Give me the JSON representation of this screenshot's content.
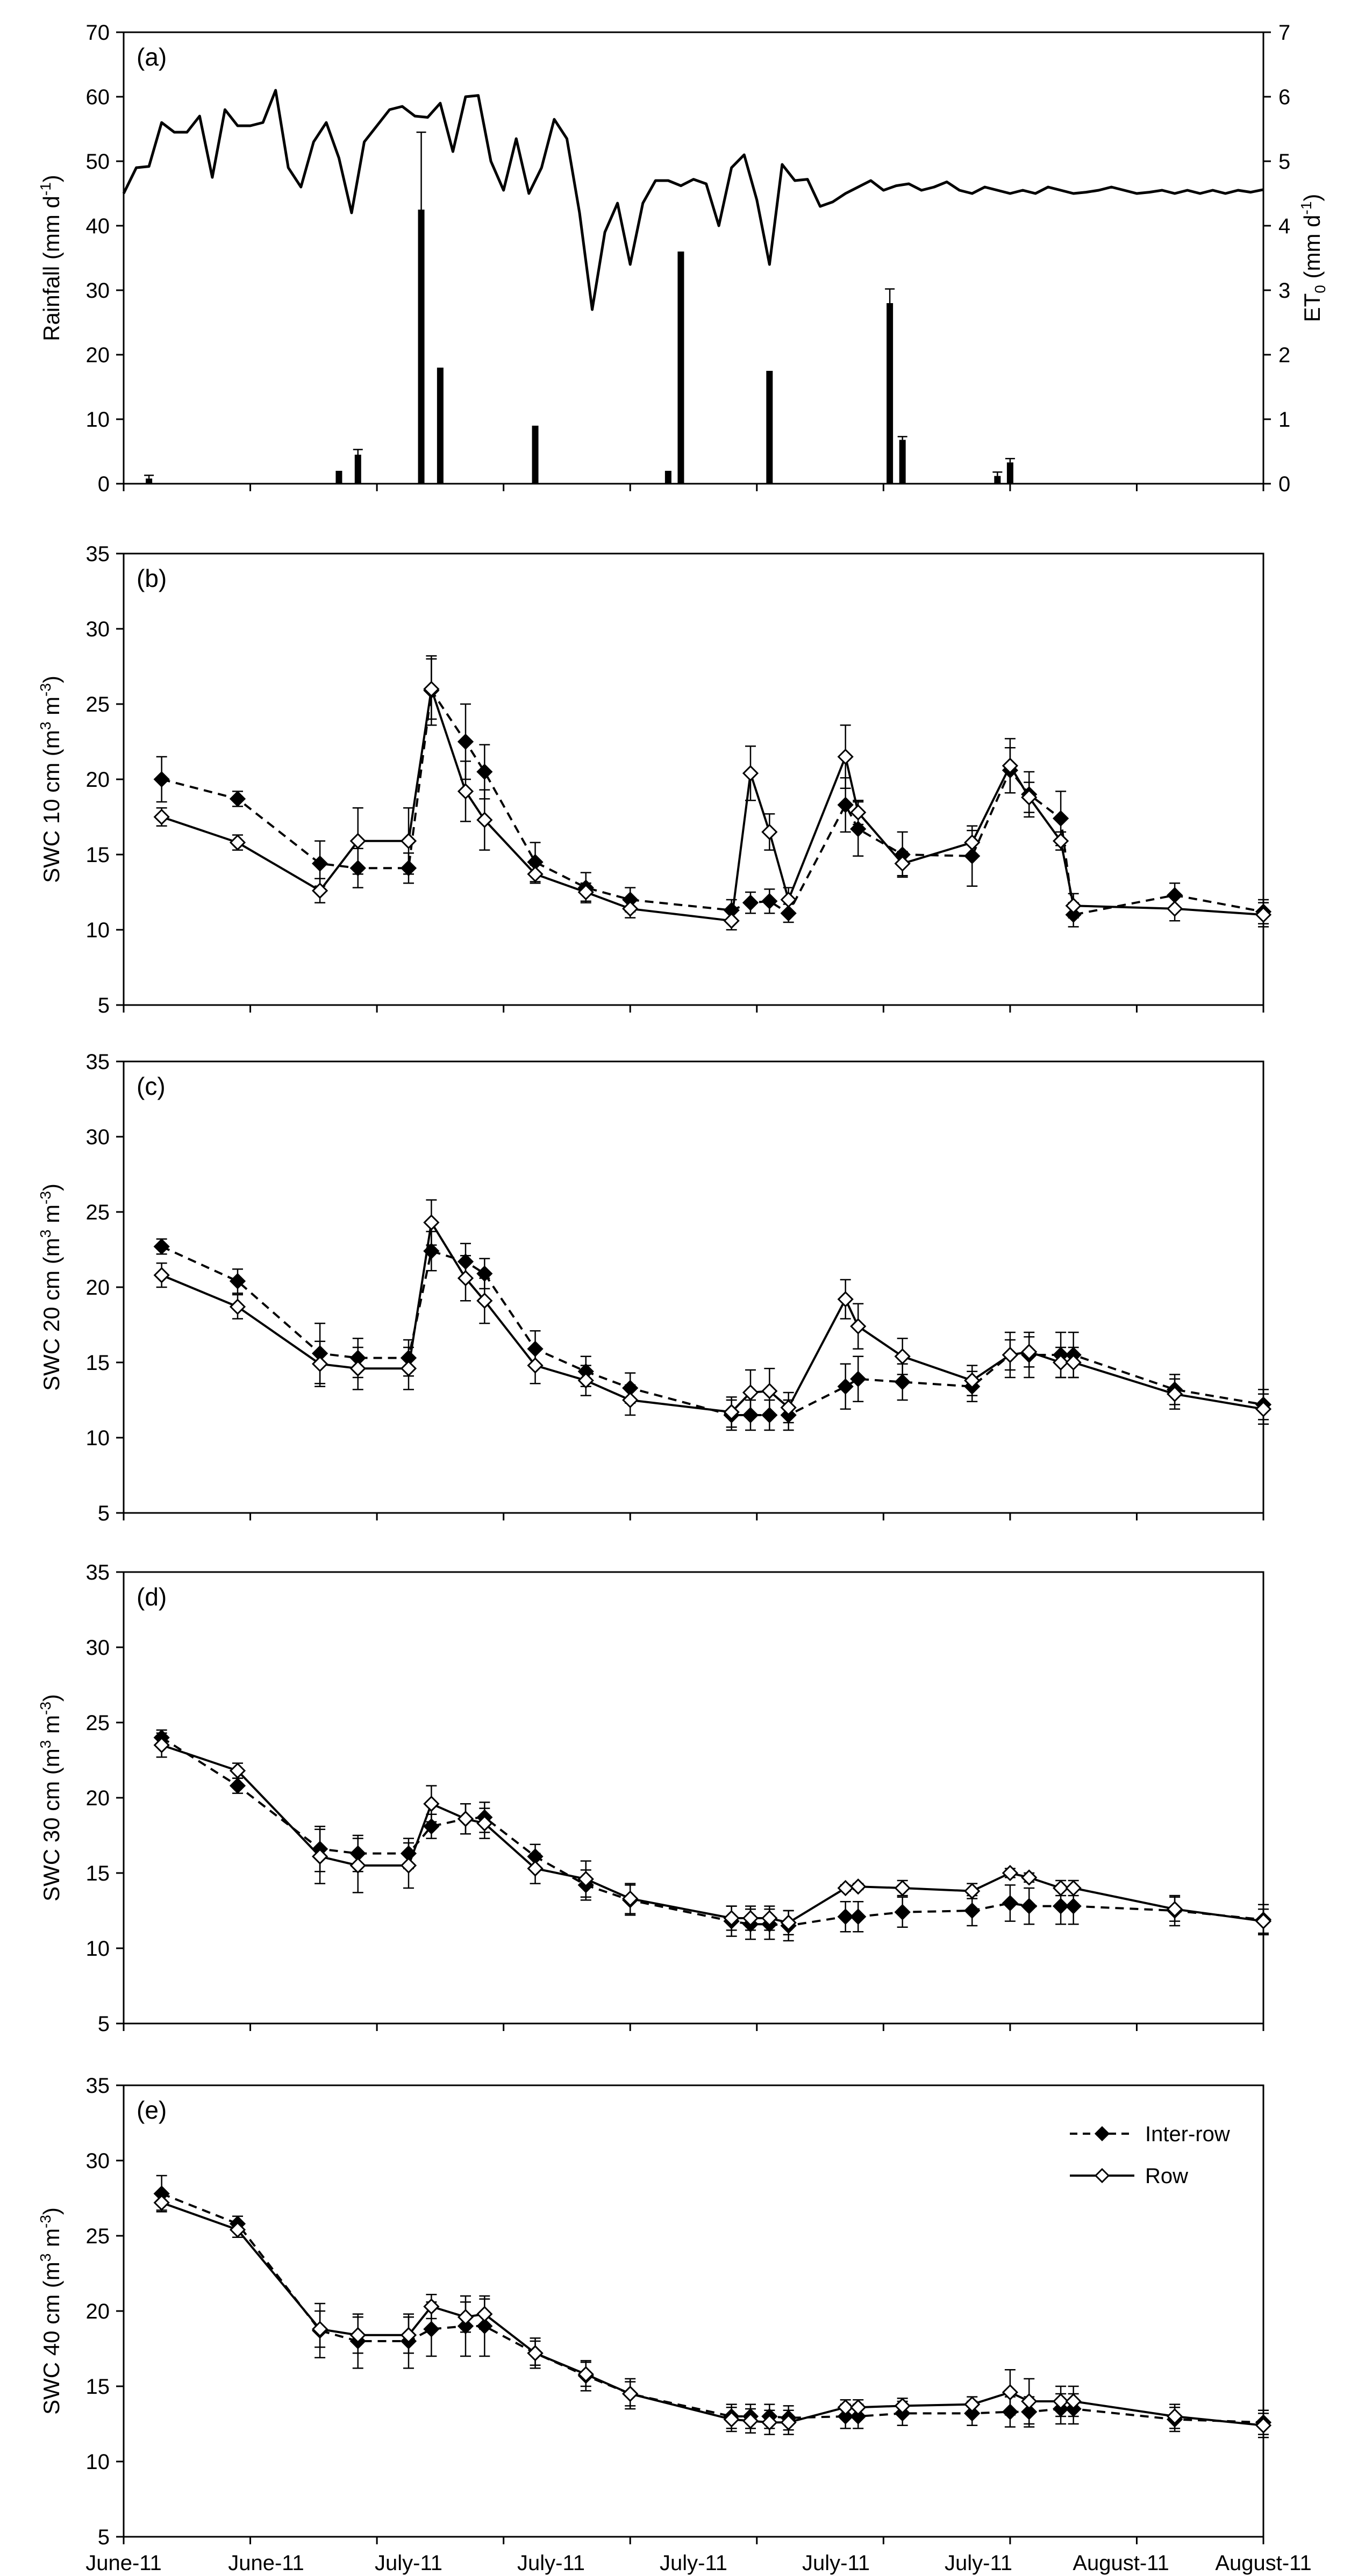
{
  "chart_data": [
    {
      "panel": "(a)",
      "type": "bar+line",
      "ylabel": "Rainfall (mm d⁻¹)",
      "ylabel_parts": [
        "Rainfall (mm d",
        "-1",
        ")"
      ],
      "y2label": "ET₀ (mm d⁻¹)",
      "y2label_parts": [
        "ET",
        "0",
        " (mm d",
        "-1",
        ")"
      ],
      "ylim": [
        0,
        70
      ],
      "yticks": [
        "0",
        "10",
        "20",
        "30",
        "40",
        "50",
        "60",
        "70"
      ],
      "y2lim": [
        0,
        7
      ],
      "y2ticks": [
        "0",
        "1",
        "2",
        "3",
        "4",
        "5",
        "6",
        "7"
      ],
      "xlim": [
        0,
        90
      ],
      "rainfall": {
        "x": [
          2,
          17,
          18.5,
          23.5,
          25,
          32.5,
          43,
          44,
          51,
          69,
          60.5,
          61.5,
          70
        ],
        "values": [
          0.8,
          2,
          4.5,
          42.5,
          18,
          9,
          2,
          36,
          17.5,
          1.2,
          28,
          6.8,
          3.3
        ],
        "err": [
          0.5,
          0,
          0.8,
          12,
          0,
          0,
          0,
          0,
          0,
          0.6,
          2.2,
          0.5,
          0.6
        ]
      },
      "et0": {
        "x": [
          0,
          1,
          2,
          3,
          4,
          5,
          6,
          7,
          8,
          9,
          10,
          11,
          12,
          13,
          14,
          15,
          16,
          17,
          18,
          19,
          20,
          21,
          22,
          23,
          24,
          25,
          26,
          27,
          28,
          29,
          30,
          31,
          32,
          33,
          34,
          35,
          36,
          37,
          38,
          39,
          40,
          41,
          42,
          43,
          44,
          45,
          46,
          47,
          48,
          49,
          50,
          51,
          52,
          53,
          54,
          55,
          56,
          57,
          58,
          59,
          60,
          61,
          62,
          63,
          64,
          65,
          66,
          67,
          68,
          69,
          70,
          71,
          72,
          73,
          74,
          75,
          76,
          77,
          78,
          79,
          80,
          81,
          82,
          83,
          84,
          85,
          86,
          87,
          88,
          89,
          90
        ],
        "values": [
          4.5,
          4.9,
          4.92,
          5.6,
          5.45,
          5.45,
          5.7,
          4.75,
          5.8,
          5.55,
          5.55,
          5.6,
          6.1,
          4.9,
          4.6,
          5.3,
          5.6,
          5.05,
          4.2,
          5.3,
          5.55,
          5.8,
          5.85,
          5.7,
          5.68,
          5.9,
          5.15,
          6.0,
          6.02,
          5.0,
          4.55,
          5.35,
          4.5,
          4.9,
          5.65,
          5.35,
          4.2,
          2.7,
          3.9,
          4.35,
          3.4,
          4.35,
          4.7,
          4.7,
          4.62,
          4.72,
          4.65,
          4.0,
          4.9,
          5.1,
          4.4,
          3.4,
          4.95,
          4.7,
          4.72,
          4.3,
          4.37,
          4.5,
          4.6,
          4.7,
          4.55,
          4.62,
          4.65,
          4.55,
          4.6,
          4.68,
          4.55,
          4.5,
          4.6,
          4.55,
          4.5,
          4.55,
          4.5,
          4.6,
          4.55,
          4.5,
          4.52,
          4.55,
          4.6,
          4.55,
          4.5,
          4.52,
          4.55,
          4.5,
          4.55,
          4.5,
          4.55,
          4.5,
          4.55,
          4.52,
          4.56
        ]
      }
    },
    {
      "panel": "(b)",
      "type": "line",
      "ylabel": "SWC 10 cm (m³ m⁻³)",
      "ylabel_parts": [
        "SWC 10 cm (m",
        "3",
        " m",
        "-3",
        ")"
      ],
      "ylim": [
        5,
        35
      ],
      "yticks": [
        "5",
        "10",
        "15",
        "20",
        "25",
        "30",
        "35"
      ],
      "series": [
        {
          "name": "Inter-row",
          "x": [
            3,
            9,
            15.5,
            18.5,
            22.5,
            24.3,
            27,
            28.5,
            32.5,
            36.5,
            40,
            48,
            49.5,
            51,
            52.5,
            57,
            58,
            61.5,
            67,
            70,
            71.5,
            74,
            75,
            83,
            90
          ],
          "values": [
            20,
            18.7,
            14.4,
            14.1,
            14.1,
            25.9,
            22.5,
            20.5,
            14.5,
            12.8,
            12,
            11.3,
            11.8,
            11.9,
            11.1,
            18.3,
            16.7,
            15,
            14.9,
            20.6,
            19,
            17.4,
            11,
            12.3,
            11.2
          ],
          "err": [
            1.5,
            0.5,
            1.5,
            1.3,
            1.0,
            2.3,
            2.5,
            1.8,
            1.3,
            1.0,
            0.8,
            0.7,
            0.7,
            0.8,
            0.6,
            1.8,
            1.8,
            1.5,
            2.0,
            1.5,
            1.5,
            1.8,
            0.8,
            0.8,
            0.8
          ]
        },
        {
          "name": "Row",
          "x": [
            3,
            9,
            15.5,
            18.5,
            22.5,
            24.3,
            27,
            28.5,
            32.5,
            36.5,
            40,
            48,
            49.5,
            51,
            52.5,
            57,
            58,
            61.5,
            67,
            70,
            71.5,
            74,
            75,
            83,
            90
          ],
          "values": [
            17.5,
            15.8,
            12.6,
            15.9,
            15.9,
            26,
            19.2,
            17.3,
            13.7,
            12.5,
            11.4,
            10.6,
            20.4,
            16.5,
            12,
            21.5,
            17.8,
            14.4,
            15.8,
            20.9,
            18.8,
            15.9,
            11.6,
            11.4,
            11
          ],
          "err": [
            0.6,
            0.5,
            0.8,
            2.2,
            2.2,
            2.0,
            2.0,
            2.0,
            0.6,
            0.6,
            0.6,
            0.6,
            1.8,
            1.2,
            0.8,
            2.1,
            0.8,
            0.8,
            0.8,
            1.8,
            1.0,
            0.6,
            0.8,
            0.8,
            0.8
          ]
        }
      ]
    },
    {
      "panel": "(c)",
      "type": "line",
      "ylabel": "SWC 20 cm (m³ m⁻³)",
      "ylabel_parts": [
        "SWC 20 cm (m",
        "3",
        " m",
        "-3",
        ")"
      ],
      "ylim": [
        5,
        35
      ],
      "yticks": [
        "5",
        "10",
        "15",
        "20",
        "25",
        "30",
        "35"
      ],
      "series": [
        {
          "name": "Inter-row",
          "x": [
            3,
            9,
            15.5,
            18.5,
            22.5,
            24.3,
            27,
            28.5,
            32.5,
            36.5,
            40,
            48,
            49.5,
            51,
            52.5,
            57,
            58,
            61.5,
            67,
            70,
            71.5,
            74,
            75,
            83,
            90
          ],
          "values": [
            22.7,
            20.4,
            15.6,
            15.3,
            15.3,
            22.4,
            21.7,
            20.9,
            15.9,
            14.4,
            13.3,
            11.5,
            11.5,
            11.5,
            11.5,
            13.4,
            13.9,
            13.7,
            13.4,
            15.5,
            15.5,
            15.5,
            15.5,
            13.2,
            12.2
          ],
          "err": [
            0.5,
            0.8,
            2.0,
            1.3,
            1.2,
            1.3,
            1.2,
            1.0,
            1.2,
            1.0,
            1.0,
            1.0,
            1.0,
            1.0,
            1.0,
            1.5,
            1.5,
            1.2,
            1.0,
            1.5,
            1.5,
            1.5,
            1.5,
            1.0,
            1.0
          ]
        },
        {
          "name": "Row",
          "x": [
            3,
            9,
            15.5,
            18.5,
            22.5,
            24.3,
            27,
            28.5,
            32.5,
            36.5,
            40,
            48,
            49.5,
            51,
            52.5,
            57,
            58,
            61.5,
            67,
            70,
            71.5,
            74,
            75,
            83,
            90
          ],
          "values": [
            20.8,
            18.7,
            14.9,
            14.6,
            14.6,
            24.3,
            20.6,
            19.1,
            14.8,
            13.8,
            12.5,
            11.7,
            13,
            13.1,
            12,
            19.2,
            17.4,
            15.4,
            13.8,
            15.5,
            15.7,
            15,
            15.0,
            12.9,
            11.9
          ],
          "err": [
            0.8,
            0.8,
            1.5,
            1.4,
            1.4,
            1.5,
            1.5,
            1.5,
            1.2,
            1.0,
            1.0,
            1.0,
            1.5,
            1.5,
            1.0,
            1.3,
            1.5,
            1.2,
            1.0,
            1.0,
            1.0,
            1.0,
            1.0,
            1.0,
            1.0
          ]
        }
      ]
    },
    {
      "panel": "(d)",
      "type": "line",
      "ylabel": "SWC 30 cm (m³ m⁻³)",
      "ylabel_parts": [
        "SWC 30 cm (m",
        "3",
        " m",
        "-3",
        ")"
      ],
      "ylim": [
        5,
        35
      ],
      "yticks": [
        "5",
        "10",
        "15",
        "20",
        "25",
        "30",
        "35"
      ],
      "series": [
        {
          "name": "Inter-row",
          "x": [
            3,
            9,
            15.5,
            18.5,
            22.5,
            24.3,
            27,
            28.5,
            32.5,
            36.5,
            40,
            48,
            49.5,
            51,
            52.5,
            57,
            58,
            61.5,
            67,
            70,
            71.5,
            74,
            75,
            83,
            90
          ],
          "values": [
            24,
            20.8,
            16.6,
            16.3,
            16.3,
            18.1,
            18.6,
            18.7,
            16.1,
            14.2,
            13.2,
            11.8,
            11.6,
            11.6,
            11.5,
            12.1,
            12.1,
            12.4,
            12.5,
            13,
            12.8,
            12.8,
            12.8,
            12.5,
            11.9
          ],
          "err": [
            0.5,
            0.5,
            1.5,
            1.2,
            1.0,
            0.8,
            1.0,
            1.0,
            0.8,
            1.0,
            1.0,
            1.0,
            1.0,
            1.0,
            1.0,
            1.0,
            1.0,
            1.0,
            1.0,
            1.2,
            1.2,
            1.2,
            1.2,
            1.0,
            1.0
          ]
        },
        {
          "name": "Row",
          "x": [
            3,
            9,
            15.5,
            18.5,
            22.5,
            24.3,
            27,
            28.5,
            32.5,
            36.5,
            40,
            48,
            49.5,
            51,
            52.5,
            57,
            58,
            61.5,
            67,
            70,
            71.5,
            74,
            75,
            83,
            90
          ],
          "values": [
            23.5,
            21.8,
            16.1,
            15.5,
            15.5,
            19.6,
            18.6,
            18.3,
            15.3,
            14.6,
            13.3,
            12,
            12,
            12,
            11.7,
            14,
            14.1,
            14,
            13.8,
            15,
            14.7,
            14,
            14.0,
            12.6,
            11.8
          ],
          "err": [
            0.8,
            0.5,
            1.8,
            1.8,
            1.5,
            1.2,
            1.0,
            1.0,
            1.0,
            1.2,
            1.0,
            0.8,
            0.8,
            0.8,
            0.8,
            0.2,
            0.2,
            0.5,
            0.5,
            0.3,
            0.3,
            0.5,
            0.5,
            0.8,
            0.8
          ]
        }
      ]
    },
    {
      "panel": "(e)",
      "type": "line",
      "ylabel": "SWC 40 cm (m³ m⁻³)",
      "ylabel_parts": [
        "SWC 40 cm (m",
        "3",
        " m",
        "-3",
        ")"
      ],
      "ylim": [
        5,
        35
      ],
      "yticks": [
        "5",
        "10",
        "15",
        "20",
        "25",
        "30",
        "35"
      ],
      "xticks": [
        "June-11",
        "June-11",
        "July-11",
        "July-11",
        "July-11",
        "July-11",
        "July-11",
        "August-11",
        "August-11"
      ],
      "legend": {
        "position": "top-right",
        "entries": [
          "Inter-row",
          "Row"
        ]
      },
      "series": [
        {
          "name": "Inter-row",
          "x": [
            3,
            9,
            15.5,
            18.5,
            22.5,
            24.3,
            27,
            28.5,
            32.5,
            36.5,
            40,
            48,
            49.5,
            51,
            52.5,
            57,
            58,
            61.5,
            67,
            70,
            71.5,
            74,
            75,
            83,
            90
          ],
          "values": [
            27.8,
            25.8,
            18.7,
            18,
            18,
            18.8,
            19,
            19,
            17.2,
            15.7,
            14.5,
            13,
            13,
            13,
            12.9,
            13,
            13,
            13.2,
            13.2,
            13.3,
            13.3,
            13.5,
            13.5,
            12.8,
            12.6
          ],
          "err": [
            1.2,
            0.5,
            1.8,
            1.8,
            1.8,
            1.8,
            2.0,
            2.0,
            1.0,
            1.0,
            1.0,
            0.8,
            0.8,
            0.8,
            0.8,
            0.8,
            0.8,
            0.8,
            0.8,
            1.0,
            1.0,
            1.0,
            1.0,
            0.8,
            0.8
          ]
        },
        {
          "name": "Row",
          "x": [
            3,
            9,
            15.5,
            18.5,
            22.5,
            24.3,
            27,
            28.5,
            32.5,
            36.5,
            40,
            48,
            49.5,
            51,
            52.5,
            57,
            58,
            61.5,
            67,
            70,
            71.5,
            74,
            75,
            83,
            90
          ],
          "values": [
            27.2,
            25.4,
            18.8,
            18.4,
            18.4,
            20.3,
            19.6,
            19.8,
            17.2,
            15.8,
            14.5,
            12.8,
            12.7,
            12.6,
            12.6,
            13.6,
            13.6,
            13.7,
            13.8,
            14.6,
            14.0,
            14.0,
            14.0,
            13.0,
            12.4
          ],
          "err": [
            0.5,
            0.5,
            1.2,
            1.2,
            1.2,
            0.8,
            1.0,
            1.0,
            0.8,
            0.8,
            0.8,
            0.8,
            0.8,
            0.8,
            0.8,
            0.5,
            0.5,
            0.5,
            0.5,
            1.5,
            1.5,
            1.0,
            1.0,
            0.8,
            0.8
          ]
        }
      ]
    }
  ]
}
